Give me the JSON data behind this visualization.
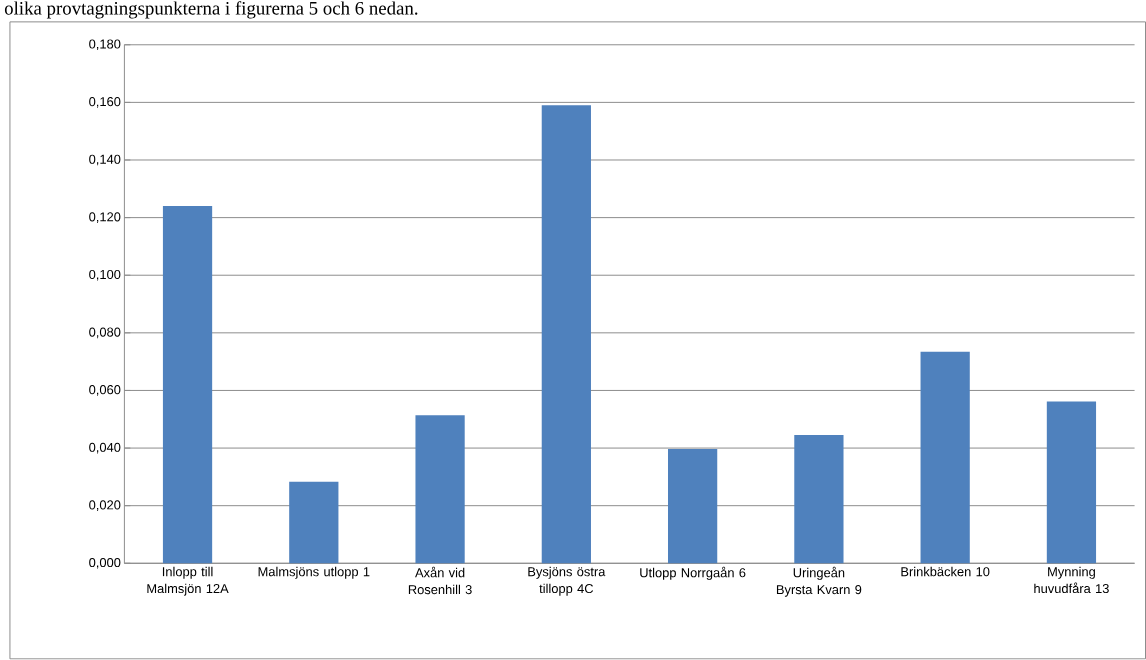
{
  "chart_data": {
    "type": "bar",
    "annotations": [
      "olika provtagningspunkterna i figurerna 5 och 6 nedan."
    ],
    "categories": [
      "Inlopp till Malmsjön 12A",
      "Malmsjöns utlopp 1",
      "Axån vid Rosenhill 3",
      "Bysjöns östra tillopp 4C",
      "Utlopp Norrgaån 6",
      "Uringeån Byrsta Kvarn 9",
      "Brinkbäcken 10",
      "Mynning huvudfåra 13"
    ],
    "values": [
      0.124,
      0.0283,
      0.0514,
      0.159,
      0.0397,
      0.0445,
      0.0734,
      0.0562
    ],
    "color": "#4f81bd",
    "ylim": [
      0,
      0.18
    ],
    "yticks": [
      {
        "value": 0,
        "label": "0,000"
      },
      {
        "value": 0.02,
        "label": "0,020"
      },
      {
        "value": 0.04,
        "label": "0,040"
      },
      {
        "value": 0.06,
        "label": "0,060"
      },
      {
        "value": 0.08,
        "label": "0,080"
      },
      {
        "value": 0.1,
        "label": "0,100"
      },
      {
        "value": 0.12,
        "label": "0,120"
      },
      {
        "value": 0.14,
        "label": "0,140"
      },
      {
        "value": 0.16,
        "label": "0,160"
      },
      {
        "value": 0.18,
        "label": "0,180"
      }
    ],
    "grid": "y"
  }
}
